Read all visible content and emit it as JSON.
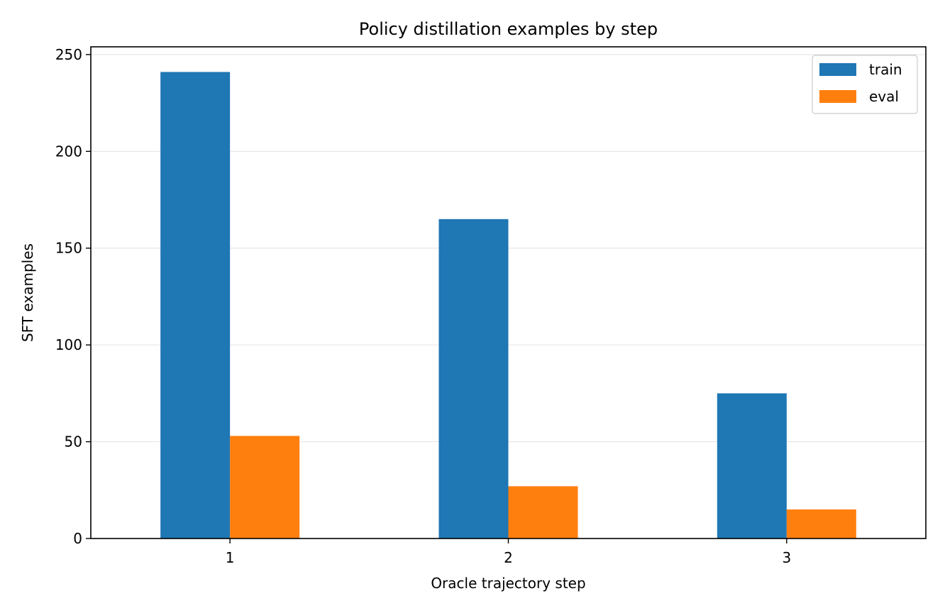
{
  "chart_data": {
    "type": "bar",
    "title": "Policy distillation examples by step",
    "xlabel": "Oracle trajectory step",
    "ylabel": "SFT examples",
    "categories": [
      "1",
      "2",
      "3"
    ],
    "series": [
      {
        "name": "train",
        "values": [
          241,
          165,
          75
        ],
        "color": "#1f77b4"
      },
      {
        "name": "eval",
        "values": [
          53,
          27,
          15
        ],
        "color": "#ff7f0e"
      }
    ],
    "ylim": [
      0,
      254
    ],
    "yticks": [
      0,
      50,
      100,
      150,
      200,
      250
    ],
    "grid": "y",
    "legend_position": "top-right"
  }
}
